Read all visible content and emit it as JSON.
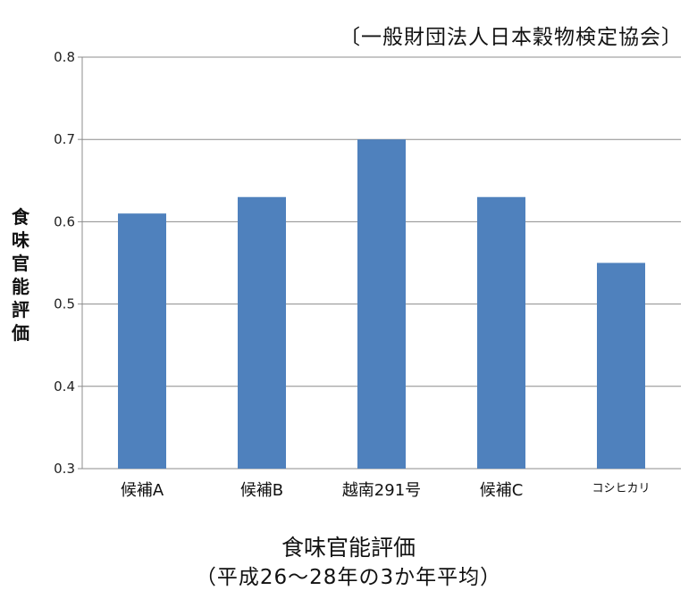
{
  "source_note": "〔一般財団法人日本穀物検定協会〕",
  "bottom_title_line1": "食味官能評価",
  "bottom_title_line2": "（平成26〜28年の3か年平均）",
  "chart_data": {
    "type": "bar",
    "ylabel": "食味官能評価",
    "categories": [
      "候補A",
      "候補B",
      "越南291号",
      "候補C",
      "コシヒカリ"
    ],
    "values": [
      0.61,
      0.63,
      0.7,
      0.63,
      0.55
    ],
    "ylim": [
      0.3,
      0.8
    ],
    "yticks": [
      "0.3",
      "0.4",
      "0.5",
      "0.6",
      "0.7",
      "0.8"
    ],
    "grid": true,
    "legend": "none"
  },
  "colors": {
    "bar": "#4f81bd",
    "grid": "#8c8c8c"
  }
}
